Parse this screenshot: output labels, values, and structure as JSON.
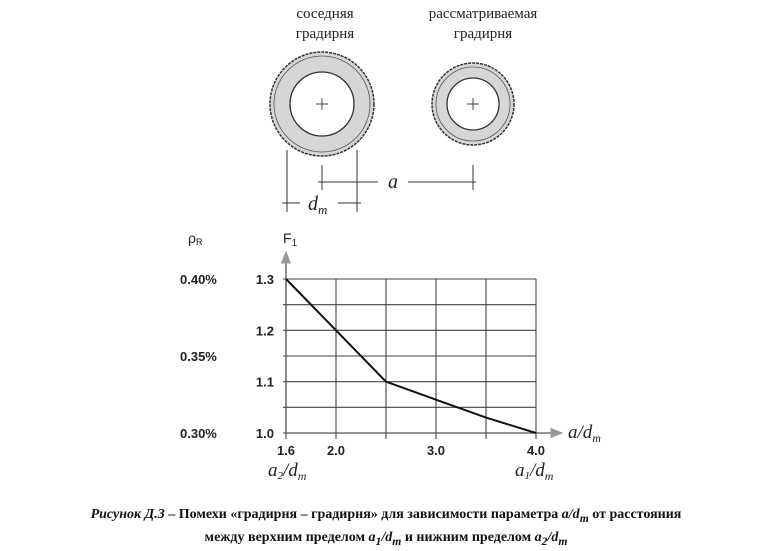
{
  "diagram": {
    "neighbor_label_1": "соседняя",
    "neighbor_label_2": "градирня",
    "considered_label_1": "рассматриваемая",
    "considered_label_2": "градирня",
    "distance_label": "a",
    "diameter_label": "d",
    "diameter_sub": "m"
  },
  "chart_data": {
    "type": "line",
    "ylabel": "F",
    "ylabel_sub": "1",
    "y2label": "ρ",
    "y2label_sub": "R",
    "xlabel": "a/d",
    "xlabel_sub": "m",
    "x_ticks": [
      "1.6",
      "2.0",
      "3.0",
      "4.0"
    ],
    "x_grid": [
      1.6,
      2.0,
      2.5,
      3.0,
      3.5,
      4.0
    ],
    "y_ticks": [
      "1.0",
      "1.1",
      "1.2",
      "1.3"
    ],
    "y_grid": [
      1.0,
      1.05,
      1.1,
      1.15,
      1.2,
      1.25,
      1.3
    ],
    "y2_ticks": [
      {
        "value": 1.3,
        "label": "0.40%"
      },
      {
        "value": 1.15,
        "label": "0.35%"
      },
      {
        "value": 1.0,
        "label": "0.30%"
      }
    ],
    "xlim": [
      1.6,
      4.0
    ],
    "ylim": [
      1.0,
      1.3
    ],
    "grid": true,
    "x": [
      1.6,
      2.0,
      2.5,
      3.0,
      3.5,
      4.0
    ],
    "y": [
      1.3,
      1.2,
      1.1,
      1.065,
      1.03,
      1.0
    ],
    "lower_limit_label": "a",
    "lower_limit_sub": "2",
    "upper_limit_label": "a",
    "upper_limit_sub": "1",
    "limit_den": "d",
    "limit_den_sub": "m"
  },
  "caption": {
    "figure": "Рисунок Д.3",
    "text_1": " – Помехи «градирня – градирня» для зависимости параметра ",
    "param": "a/d",
    "param_sub": "m",
    "text_2": " от расстояния",
    "text_3": "между верхним пределом ",
    "upper": "a",
    "upper_sub": "1",
    "upper_den": "/d",
    "upper_den_sub": "m",
    "text_4": " и нижним пределом ",
    "lower": "a",
    "lower_sub": "2",
    "lower_den": "/d",
    "lower_den_sub": "m"
  }
}
